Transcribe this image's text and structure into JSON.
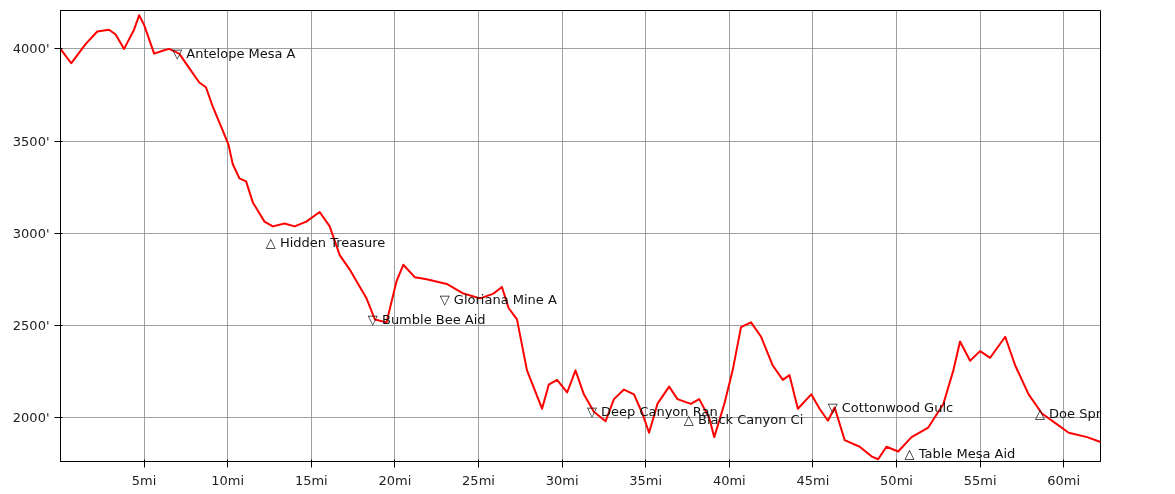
{
  "chart_data": {
    "type": "line",
    "x": [
      0,
      0.64,
      1.5,
      2.2,
      2.9,
      3.3,
      3.8,
      4.4,
      4.7,
      5.0,
      5.6,
      6.1,
      6.5,
      7.1,
      7.7,
      8.3,
      8.7,
      9.1,
      9.7,
      10.05,
      10.3,
      10.7,
      11.1,
      11.5,
      12.2,
      12.7,
      13.4,
      14.0,
      14.7,
      15.5,
      16.1,
      16.7,
      17.3,
      17.8,
      18.3,
      18.8,
      19.5,
      20.1,
      20.5,
      21.2,
      21.9,
      23.1,
      24.1,
      25.1,
      25.9,
      26.4,
      26.8,
      27.3,
      27.9,
      28.8,
      29.2,
      29.7,
      30.3,
      30.8,
      31.3,
      31.9,
      32.6,
      33.1,
      33.7,
      34.3,
      34.8,
      35.2,
      35.7,
      36.4,
      36.9,
      37.7,
      38.2,
      38.8,
      39.1,
      39.7,
      40.2,
      40.7,
      41.3,
      41.9,
      42.6,
      43.2,
      43.6,
      44.1,
      44.9,
      45.4,
      45.9,
      46.3,
      46.9,
      47.8,
      48.5,
      48.9,
      49.4,
      50.1,
      50.9,
      51.9,
      52.8,
      53.4,
      53.8,
      54.4,
      55.0,
      55.6,
      56.5,
      57.1,
      57.9,
      58.7,
      59.5,
      60.3,
      61.4,
      62.2
    ],
    "series": [
      {
        "color": "#ff0000",
        "values": [
          4000,
          3922,
          4026,
          4094,
          4104,
          4078,
          4000,
          4104,
          4182,
          4130,
          3974,
          3990,
          4000,
          3974,
          3896,
          3818,
          3792,
          3688,
          3558,
          3480,
          3376,
          3298,
          3282,
          3168,
          3064,
          3038,
          3054,
          3038,
          3064,
          3116,
          3038,
          2882,
          2804,
          2726,
          2648,
          2534,
          2518,
          2742,
          2830,
          2762,
          2752,
          2726,
          2674,
          2648,
          2674,
          2710,
          2596,
          2534,
          2258,
          2050,
          2180,
          2206,
          2138,
          2258,
          2128,
          2034,
          1982,
          2102,
          2154,
          2128,
          2024,
          1920,
          2076,
          2170,
          2102,
          2076,
          2102,
          2000,
          1896,
          2076,
          2258,
          2492,
          2518,
          2440,
          2284,
          2206,
          2232,
          2050,
          2128,
          2050,
          1985,
          2057,
          1880,
          1844,
          1792,
          1776,
          1844,
          1818,
          1896,
          1948,
          2076,
          2258,
          2414,
          2310,
          2362,
          2326,
          2440,
          2284,
          2128,
          2024,
          1972,
          1920,
          1896,
          1870
        ]
      }
    ],
    "xlim": [
      0,
      62.2
    ],
    "ylim": [
      1764,
      4208
    ],
    "xticks": [
      {
        "value": 5,
        "label": "5mi"
      },
      {
        "value": 10,
        "label": "10mi"
      },
      {
        "value": 15,
        "label": "15mi"
      },
      {
        "value": 20,
        "label": "20mi"
      },
      {
        "value": 25,
        "label": "25mi"
      },
      {
        "value": 30,
        "label": "30mi"
      },
      {
        "value": 35,
        "label": "35mi"
      },
      {
        "value": 40,
        "label": "40mi"
      },
      {
        "value": 45,
        "label": "45mi"
      },
      {
        "value": 50,
        "label": "50mi"
      },
      {
        "value": 55,
        "label": "55mi"
      },
      {
        "value": 60,
        "label": "60mi"
      }
    ],
    "yticks": [
      {
        "value": 2000,
        "label": "2000'"
      },
      {
        "value": 2500,
        "label": "2500'"
      },
      {
        "value": 3000,
        "label": "3000'"
      },
      {
        "value": 3500,
        "label": "3500'"
      },
      {
        "value": 4000,
        "label": "4000'"
      }
    ],
    "grid": true,
    "marker": "none",
    "line_style": "solid",
    "annotations": [
      {
        "text": "▽ Antelope Mesa A",
        "x": 7.1,
        "y": 3974
      },
      {
        "text": "△ Hidden Treasure",
        "x": 12.7,
        "y": 3038
      },
      {
        "text": "▽ Bumble Bee Aid",
        "x": 18.8,
        "y": 2534
      },
      {
        "text": "▽ Gloriana Mine A",
        "x": 23.1,
        "y": 2726
      },
      {
        "text": "▽ Deep Canyon Ran",
        "x": 31.9,
        "y": 2034
      },
      {
        "text": "△ Black Canyon Ci",
        "x": 37.7,
        "y": 2076
      },
      {
        "text": "▽ Cottonwood Gulc",
        "x": 46.3,
        "y": 2057
      },
      {
        "text": "△ Table Mesa Aid",
        "x": 50.9,
        "y": 1896
      },
      {
        "text": "△ Doe Spr",
        "x": 58.7,
        "y": 2024
      }
    ]
  }
}
